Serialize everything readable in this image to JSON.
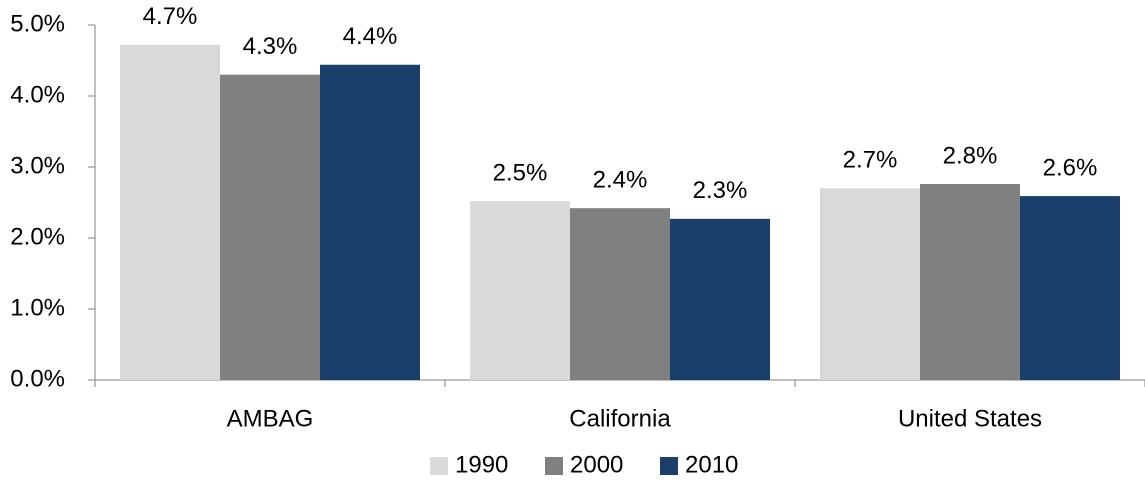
{
  "chart_data": {
    "type": "bar",
    "categories": [
      "AMBAG",
      "California",
      "United States"
    ],
    "series": [
      {
        "name": "1990",
        "color": "#d9d9d9",
        "values": [
          4.72,
          2.52,
          2.7
        ],
        "value_labels": [
          "4.7%",
          "2.5%",
          "2.7%"
        ]
      },
      {
        "name": "2000",
        "color": "#808080",
        "values": [
          4.3,
          2.42,
          2.76
        ],
        "value_labels": [
          "4.3%",
          "2.4%",
          "2.8%"
        ]
      },
      {
        "name": "2010",
        "color": "#1b3f6b",
        "values": [
          4.44,
          2.27,
          2.59
        ],
        "value_labels": [
          "4.4%",
          "2.3%",
          "2.6%"
        ]
      }
    ],
    "ylim": [
      0,
      5
    ],
    "yticks": [
      {
        "value": 0,
        "label": "0.0%"
      },
      {
        "value": 1,
        "label": "1.0%"
      },
      {
        "value": 2,
        "label": "2.0%"
      },
      {
        "value": 3,
        "label": "3.0%"
      },
      {
        "value": 4,
        "label": "4.0%"
      },
      {
        "value": 5,
        "label": "5.0%"
      }
    ],
    "legend": "bottom"
  }
}
